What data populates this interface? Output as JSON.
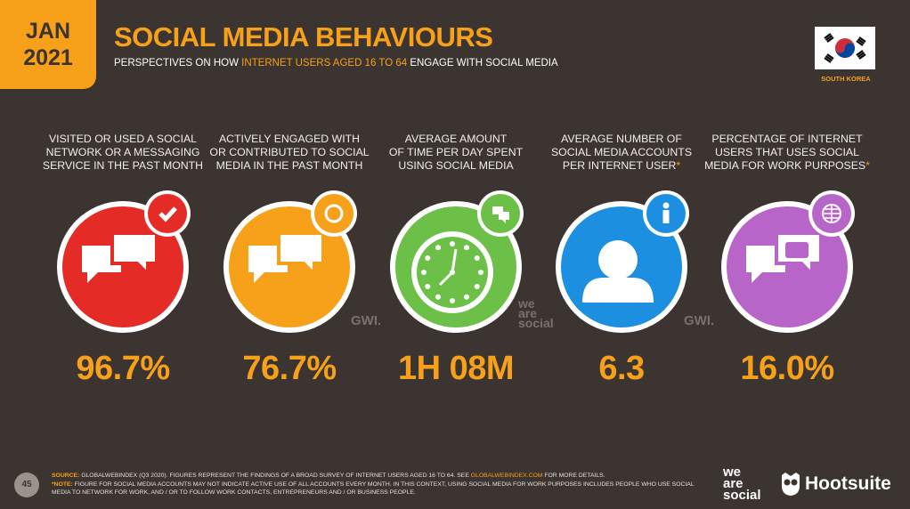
{
  "header": {
    "month": "JAN",
    "year": "2021",
    "title": "SOCIAL MEDIA BEHAVIOURS",
    "subtitle": {
      "before": "PERSPECTIVES ON HOW",
      "highlight": "INTERNET USERS AGED 16 TO 64",
      "after": "ENGAGE WITH SOCIAL MEDIA"
    },
    "country": "SOUTH KOREA"
  },
  "stats": [
    {
      "label_lines": [
        "VISITED OR USED A SOCIAL",
        "NETWORK OR A MESSAGING",
        "SERVICE IN THE PAST MONTH"
      ],
      "value": "96.7%"
    },
    {
      "label_lines": [
        "ACTIVELY ENGAGED WITH",
        "OR CONTRIBUTED TO SOCIAL",
        "MEDIA IN THE PAST MONTH"
      ],
      "value": "76.7%"
    },
    {
      "label_lines": [
        "AVERAGE AMOUNT",
        "OF TIME PER DAY SPENT",
        "USING SOCIAL MEDIA"
      ],
      "value": "1H 08M"
    },
    {
      "label_lines": [
        "AVERAGE NUMBER OF",
        "SOCIAL MEDIA ACCOUNTS",
        "PER INTERNET USER"
      ],
      "note_mark": "*",
      "value": "6.3"
    },
    {
      "label_lines": [
        "PERCENTAGE OF INTERNET",
        "USERS THAT USES SOCIAL",
        "MEDIA FOR WORK PURPOSES"
      ],
      "note_mark": "*",
      "value": "16.0%"
    }
  ],
  "watermarks": {
    "left": "GWI.",
    "center": [
      "we",
      "are",
      "social"
    ],
    "right": "GWI."
  },
  "footer": {
    "page": "45",
    "source_label": "SOURCE:",
    "source_text": "GLOBALWEBINDEX (Q3 2020). FIGURES REPRESENT THE FINDINGS OF A BROAD SURVEY OF INTERNET USERS AGED 16 TO 64. SEE",
    "source_link": "GLOBALWEBINDEX.COM",
    "source_end": "FOR MORE DETAILS.",
    "note_label": "*NOTE:",
    "note_text": "FIGURE FOR SOCIAL MEDIA ACCOUNTS MAY NOT INDICATE ACTIVE USE OF ALL ACCOUNTS EVERY MONTH. IN THIS CONTEXT, USING SOCIAL MEDIA FOR WORK PURPOSES INCLUDES PEOPLE WHO USE SOCIAL MEDIA TO NETWORK FOR WORK, AND / OR TO FOLLOW WORK CONTACTS, ENTREPRENEURS AND / OR BUSINESS PEOPLE.",
    "brand_we_are_social": [
      "we",
      "are",
      "social"
    ],
    "brand_hootsuite": "Hootsuite"
  }
}
